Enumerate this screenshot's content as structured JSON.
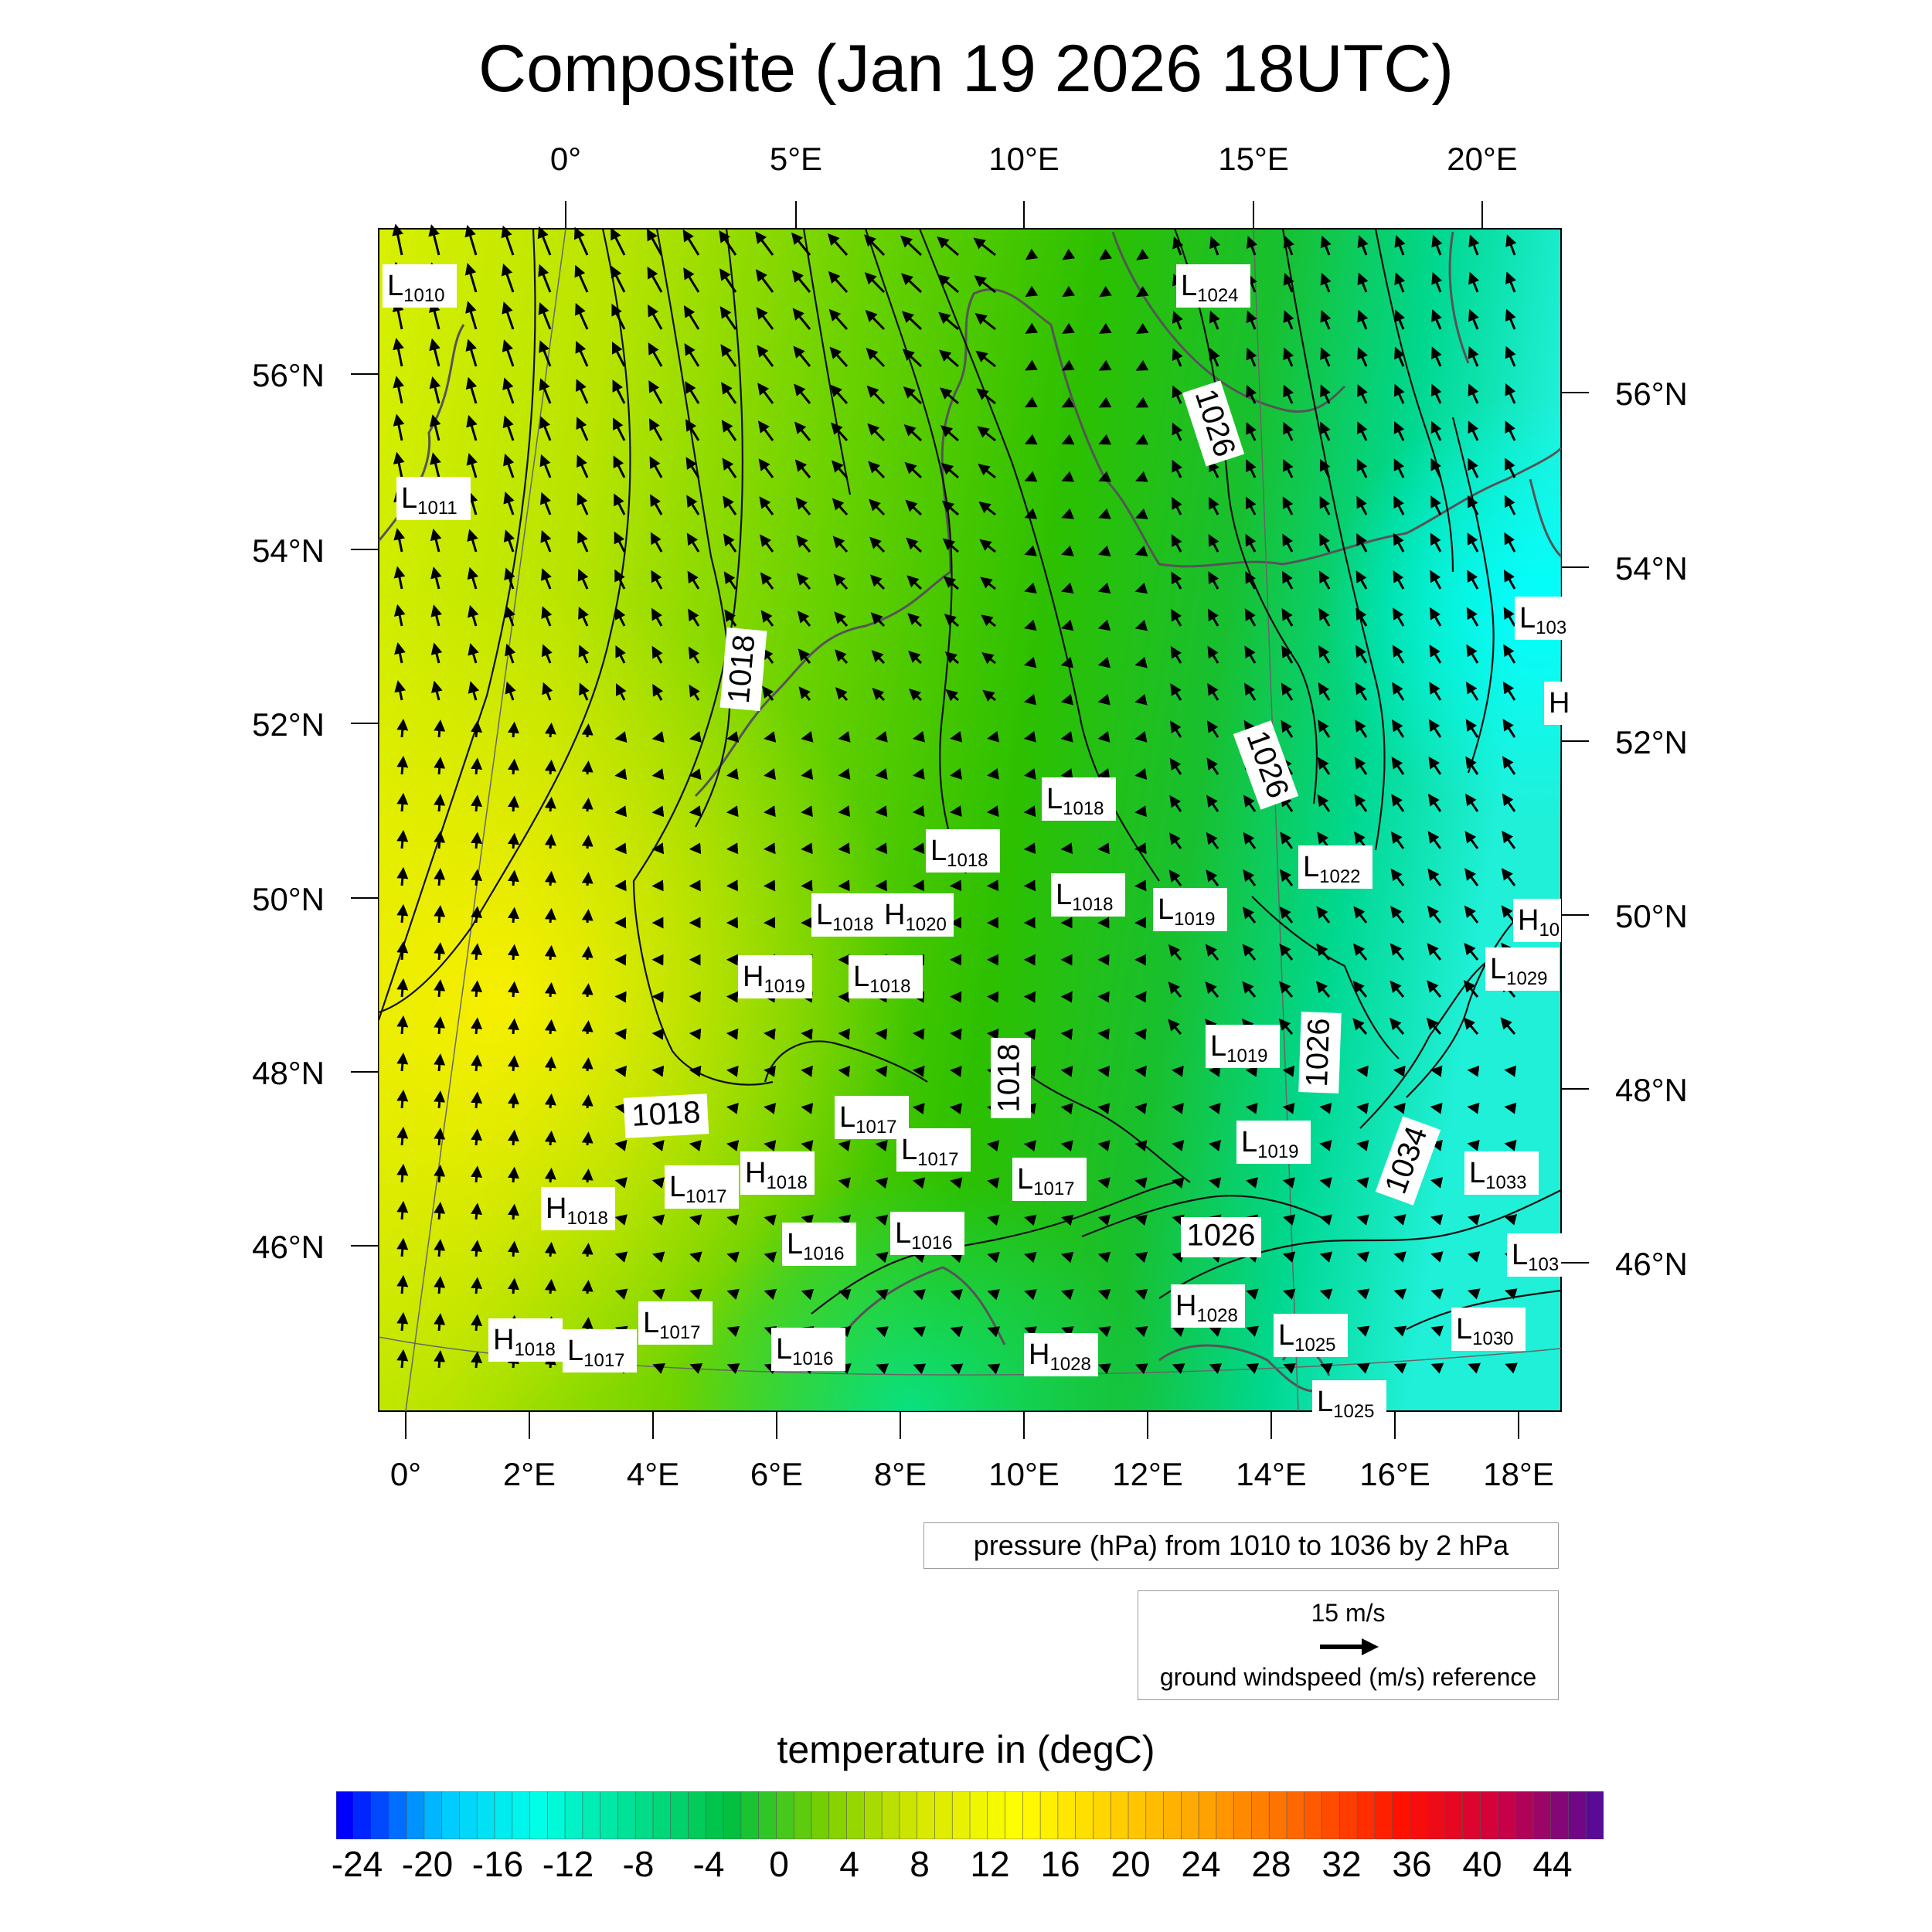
{
  "title": "Composite (Jan 19 2026 18UTC)",
  "map": {
    "top_lon_labels": [
      "0°",
      "5°E",
      "10°E",
      "15°E",
      "20°E"
    ],
    "bottom_lon_labels": [
      "0°",
      "2°E",
      "4°E",
      "6°E",
      "8°E",
      "10°E",
      "12°E",
      "14°E",
      "16°E",
      "18°E"
    ],
    "left_lat_labels": [
      "56°N",
      "54°N",
      "52°N",
      "50°N",
      "48°N",
      "46°N"
    ],
    "right_lat_labels": [
      "56°N",
      "54°N",
      "52°N",
      "50°N",
      "48°N",
      "46°N"
    ],
    "contour_labels": [
      "1026",
      "1018",
      "1026",
      "1018",
      "1018",
      "1026",
      "1034",
      "1026"
    ],
    "pressure_centers": [
      {
        "type": "L",
        "value": "1010"
      },
      {
        "type": "L",
        "value": "1024"
      },
      {
        "type": "L",
        "value": "1011"
      },
      {
        "type": "L",
        "value": "103"
      },
      {
        "type": "H",
        "value": ""
      },
      {
        "type": "L",
        "value": "1018"
      },
      {
        "type": "L",
        "value": "1018"
      },
      {
        "type": "L",
        "value": "1022"
      },
      {
        "type": "L",
        "value": "1018"
      },
      {
        "type": "L",
        "value": "1019"
      },
      {
        "type": "L",
        "value": "1018"
      },
      {
        "type": "H",
        "value": "1020"
      },
      {
        "type": "H",
        "value": "10"
      },
      {
        "type": "H",
        "value": "1019"
      },
      {
        "type": "L",
        "value": "1018"
      },
      {
        "type": "L",
        "value": "1029"
      },
      {
        "type": "L",
        "value": "1019"
      },
      {
        "type": "L",
        "value": "1017"
      },
      {
        "type": "L",
        "value": "1017"
      },
      {
        "type": "L",
        "value": "1019"
      },
      {
        "type": "L",
        "value": "1017"
      },
      {
        "type": "H",
        "value": "1018"
      },
      {
        "type": "L",
        "value": "1017"
      },
      {
        "type": "L",
        "value": "1033"
      },
      {
        "type": "H",
        "value": "1018"
      },
      {
        "type": "L",
        "value": "1016"
      },
      {
        "type": "L",
        "value": "1016"
      },
      {
        "type": "L",
        "value": "103"
      },
      {
        "type": "H",
        "value": "1028"
      },
      {
        "type": "L",
        "value": "1017"
      },
      {
        "type": "L",
        "value": "1025"
      },
      {
        "type": "L",
        "value": "1030"
      },
      {
        "type": "H",
        "value": "1018"
      },
      {
        "type": "L",
        "value": "1017"
      },
      {
        "type": "L",
        "value": "1016"
      },
      {
        "type": "H",
        "value": "1028"
      },
      {
        "type": "L",
        "value": "1025"
      }
    ]
  },
  "legend": {
    "pressure": "pressure (hPa) from 1010 to 1036 by 2 hPa",
    "wind_speed": "15 m/s",
    "wind_desc": "ground windspeed (m/s) reference"
  },
  "colorbar": {
    "title": "temperature in (degC)",
    "labels": [
      "-24",
      "-20",
      "-16",
      "-12",
      "-8",
      "-4",
      "0",
      "4",
      "8",
      "12",
      "16",
      "20",
      "24",
      "28",
      "32",
      "36",
      "40",
      "44"
    ],
    "colors": [
      "#0000ff",
      "#00c8ff",
      "#00ffe8",
      "#00e090",
      "#00c040",
      "#7ad000",
      "#d8e800",
      "#ffff00",
      "#ffd000",
      "#ffa000",
      "#ff6000",
      "#ff1000",
      "#d00040",
      "#5a0a96"
    ]
  }
}
